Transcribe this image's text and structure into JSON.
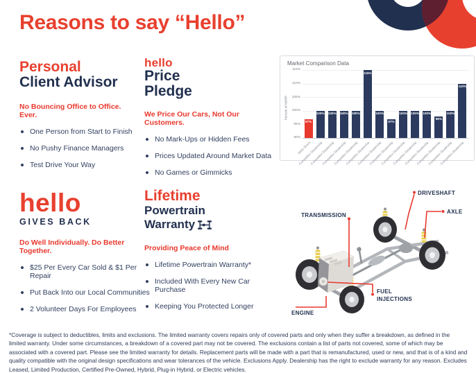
{
  "page": {
    "title": "Reasons to say “Hello”"
  },
  "colors": {
    "accent_red": "#E8402F",
    "navy": "#22304F",
    "overlap_maroon": "#5E1F31",
    "chart_bar": "#2B3A5E",
    "chart_highlight": "#E8392E",
    "spring_yellow": "#E9CE52"
  },
  "sections": {
    "personal": {
      "heading_accent": "Personal",
      "heading_rest": "Client Advisor",
      "subhead": "No Bouncing Office to Office. Ever.",
      "bullets": [
        "One Person from Start to Finish",
        "No Pushy Finance Managers",
        "Test Drive Your Way"
      ]
    },
    "price": {
      "brand": "hello",
      "heading_line1": "Price",
      "heading_line2": "Pledge",
      "subhead": "We Price Our Cars, Not Our Customers.",
      "bullets": [
        "No Mark-Ups or Hidden Fees",
        "Prices Updated Around Market Data",
        "No Games or Gimmicks"
      ]
    },
    "gives_back": {
      "brand": "hello",
      "subtitle": "GIVES BACK",
      "subhead": "Do Well Individually. Do Better Together.",
      "bullets": [
        "$25 Per Every Car Sold & $1 Per Repair",
        "Put Back Into our Local Communities",
        "2 Volunteer Days For Employees"
      ]
    },
    "warranty": {
      "heading_accent": "Lifetime",
      "heading_line1": "Powertrain",
      "heading_line2": "Warranty",
      "icon": "drivetrain-icon",
      "subhead": "Providing Peace of Mind",
      "bullets": [
        "Lifetime Powertrain Warranty*",
        "Included With Every New Car Purchase",
        "Keeping You Protected Longer"
      ]
    }
  },
  "chart_data": {
    "type": "bar",
    "title": "Market Comparison Data",
    "ylabel": "Percent of MSRP",
    "categories": [
      "Hello Direct",
      "Competitor Dealership",
      "Competitor Dealership",
      "Competitor Dealership",
      "Competitor Dealership",
      "Competitor Dealership",
      "Competitor Dealership",
      "Competitor Dealership",
      "Competitor Dealership",
      "Competitor Dealership",
      "Competitor Dealership",
      "Competitor Dealership",
      "Competitor Dealership",
      "Competitor Dealership"
    ],
    "values": [
      97,
      100,
      100,
      100,
      100,
      115,
      100,
      97,
      100,
      100,
      100,
      98,
      100,
      110
    ],
    "bar_labels": [
      "97%",
      "100%",
      "100%",
      "100%",
      "100%",
      "115%",
      "100%",
      "97%",
      "100%",
      "100%",
      "100%",
      "98%",
      "100%",
      "110%"
    ],
    "highlight_index": 0,
    "ylim": [
      90,
      115
    ],
    "yticks": [
      90,
      95,
      100,
      105,
      110,
      115
    ],
    "ytick_labels": [
      "90%",
      "95%",
      "100%",
      "105%",
      "110%",
      "115%"
    ],
    "grid": true,
    "legend": "none"
  },
  "diagram": {
    "labels": {
      "driveshaft": "DRIVESHAFT",
      "axle": "AXLE",
      "transmission": "TRANSMISSION",
      "fuel_line1": "FUEL",
      "fuel_line2": "INJECTIONS",
      "engine": "ENGINE"
    }
  },
  "footnote": "*Coverage is subject to deductibles, limits and exclusions. The limited warranty covers repairs only of covered parts and only when they suffer a breakdown, as defined in the limited warranty. Under some circumstances, a breakdown of a covered part may not be covered. The exclusions contain a list of parts not covered, some of which may be associated with a covered part. Please see the limited warranty for details. Replacement parts will be made with a part that is remanufactured, used or new, and that is of a kind and quality compatible with the original design specifications and wear tolerances of the vehicle. Exclusions Apply. Dealership has the right to exclude warranty for any reason. Excludes Leased, Limited Production, Certified Pre-Owned, Hybrid, Plug-in Hybrid, or Electric vehicles."
}
